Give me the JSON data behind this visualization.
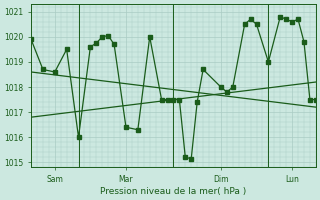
{
  "xlabel": "Pression niveau de la mer( hPa )",
  "bg_color": "#cce8e0",
  "line_color": "#1a5c1a",
  "grid_color": "#aaccc4",
  "tick_color": "#1a5c1a",
  "ylim_lo": 1014.8,
  "ylim_hi": 1021.3,
  "yticks": [
    1015,
    1016,
    1017,
    1018,
    1019,
    1020,
    1021
  ],
  "xlim_lo": 0,
  "xlim_hi": 288,
  "vline_x": [
    48,
    144,
    240
  ],
  "xtick_x": [
    24,
    96,
    192,
    264
  ],
  "xtick_labels": [
    "Sam",
    "Mar",
    "Dim",
    "Lun"
  ],
  "trend1_x": [
    0,
    288
  ],
  "trend1_y": [
    1018.6,
    1017.2
  ],
  "trend2_x": [
    0,
    288
  ],
  "trend2_y": [
    1016.8,
    1018.2
  ],
  "main_x": [
    0,
    12,
    24,
    36,
    48,
    60,
    66,
    72,
    78,
    84,
    96,
    108,
    120,
    132,
    138,
    144,
    150,
    156,
    162,
    168,
    174,
    192,
    198,
    204,
    216,
    222,
    228,
    240,
    252,
    258,
    264,
    270,
    276,
    282,
    288
  ],
  "main_y": [
    1019.9,
    1018.7,
    1018.6,
    1019.5,
    1016.0,
    1019.6,
    1019.75,
    1020.0,
    1020.05,
    1019.7,
    1016.4,
    1016.3,
    1020.0,
    1017.5,
    1017.5,
    1017.5,
    1017.5,
    1015.2,
    1015.15,
    1017.4,
    1018.7,
    1018.0,
    1017.8,
    1018.0,
    1020.5,
    1020.7,
    1020.5,
    1019.0,
    1020.8,
    1020.7,
    1020.6,
    1020.7,
    1019.8,
    1017.5,
    1017.5
  ],
  "marker_size": 2.5
}
